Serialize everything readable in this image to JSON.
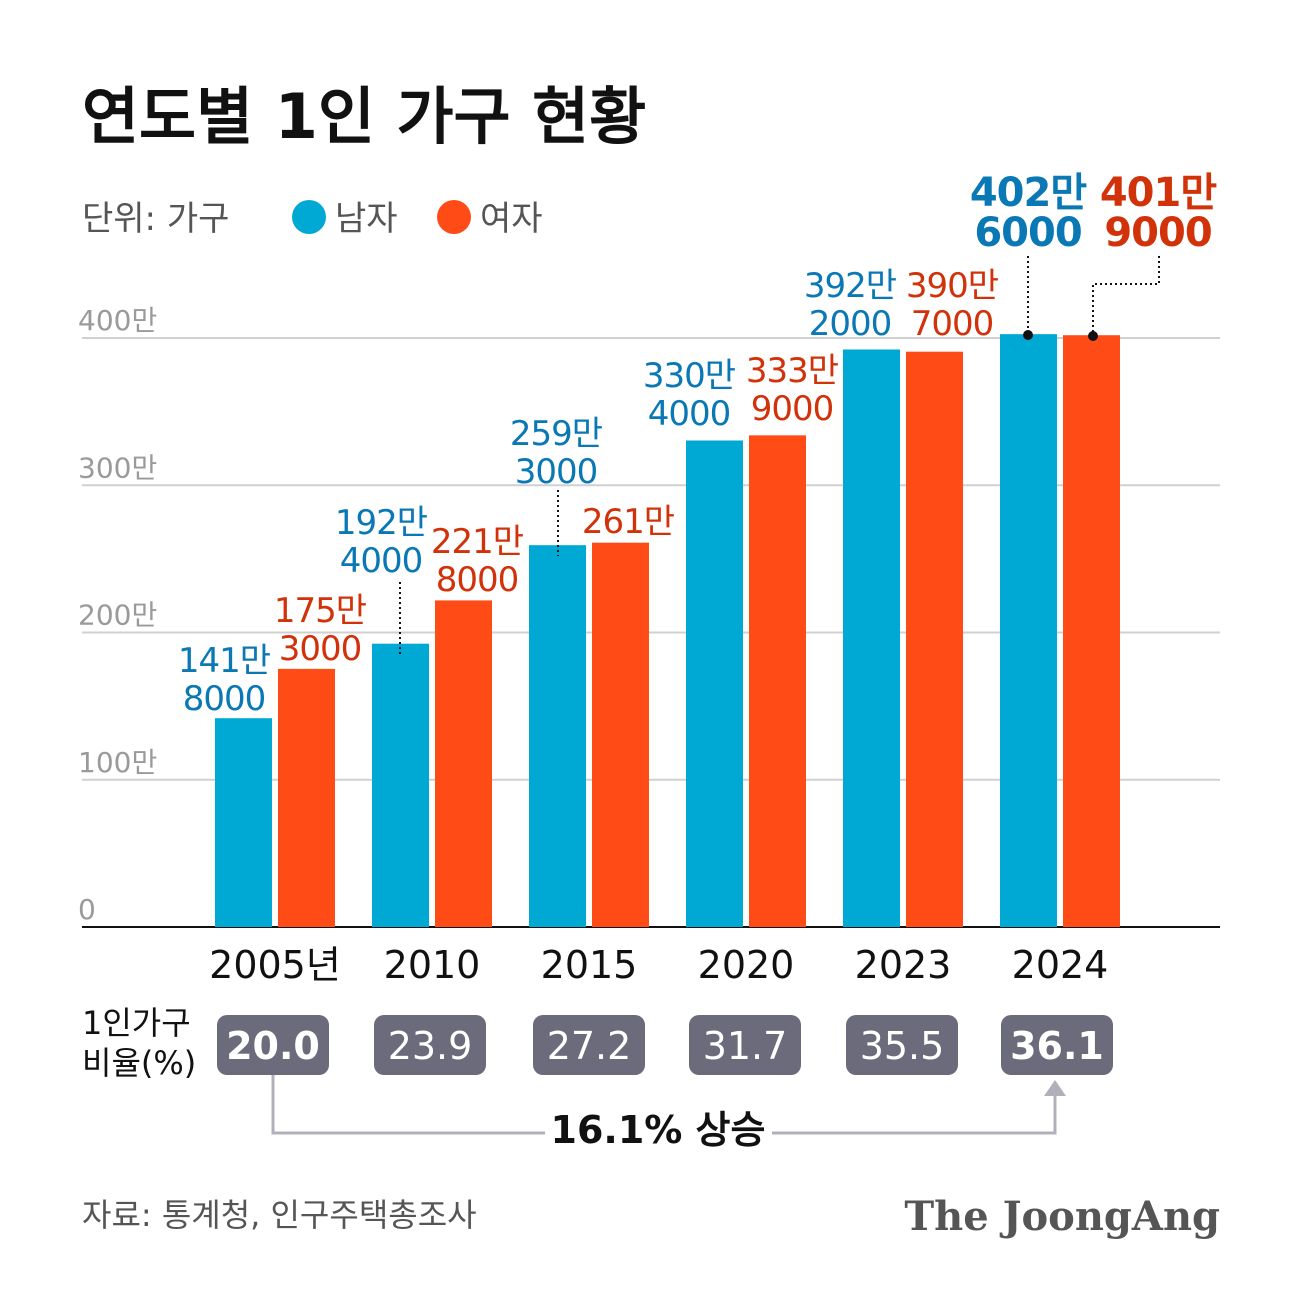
{
  "chart_data": {
    "type": "bar",
    "title": "연도별 1인 가구 현황",
    "unit_label": "단위: 가구",
    "categories": [
      "2005년",
      "2010",
      "2015",
      "2020",
      "2023",
      "2024"
    ],
    "series": [
      {
        "name": "남자",
        "color": "#00a8d4",
        "label_color": "#0a78b4",
        "values": [
          1418000,
          1924000,
          2593000,
          3304000,
          3922000,
          4026000
        ],
        "labels": [
          [
            "141만",
            "8000"
          ],
          [
            "192만",
            "4000"
          ],
          [
            "259만",
            "3000"
          ],
          [
            "330만",
            "4000"
          ],
          [
            "392만",
            "2000"
          ],
          [
            "402만",
            "6000"
          ]
        ]
      },
      {
        "name": "여자",
        "color": "#ff4c17",
        "label_color": "#d2320a",
        "values": [
          1753000,
          2218000,
          2610000,
          3339000,
          3907000,
          4019000
        ],
        "labels": [
          [
            "175만",
            "3000"
          ],
          [
            "221만",
            "8000"
          ],
          [
            "261만"
          ],
          [
            "333만",
            "9000"
          ],
          [
            "390만",
            "7000"
          ],
          [
            "401만",
            "9000"
          ]
        ]
      }
    ],
    "yticks": [
      {
        "value": 0,
        "label": "0"
      },
      {
        "value": 1000000,
        "label": "100만"
      },
      {
        "value": 2000000,
        "label": "200만"
      },
      {
        "value": 3000000,
        "label": "300만"
      },
      {
        "value": 4000000,
        "label": "400만"
      }
    ],
    "ylim": [
      0,
      4000000
    ],
    "grid": true,
    "legend_placement": "top-left",
    "ratio": {
      "label_lines": [
        "1인가구",
        "비율(%)"
      ],
      "values": [
        "20.0",
        "23.9",
        "27.2",
        "31.7",
        "35.5",
        "36.1"
      ],
      "box_color": "#6b6b7b",
      "annotation": "16.1% 상승"
    }
  },
  "footer": {
    "source": "자료: 통계청, 인구주택총조사",
    "logo": "The JoongAng"
  }
}
